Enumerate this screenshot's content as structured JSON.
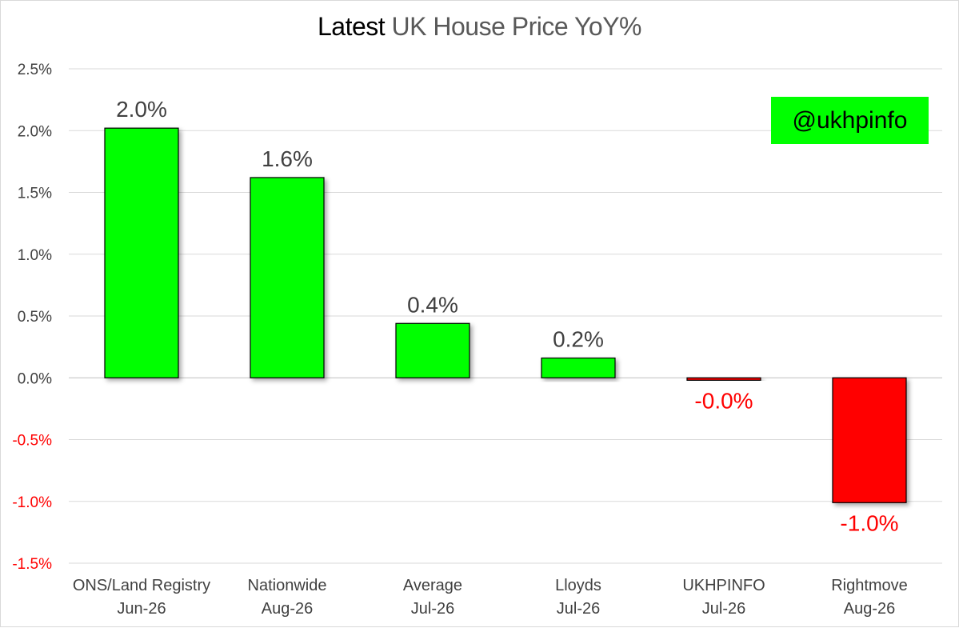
{
  "title": {
    "prefix": "Latest",
    "main": "UK House Price YoY%"
  },
  "watermark": "@ukhpinfo",
  "colors": {
    "positive": "#00ff00",
    "negative": "#ff0000",
    "label_positive": "#404040",
    "label_negative": "#ff0000",
    "gridline": "#d9d9d9"
  },
  "chart_data": {
    "type": "bar",
    "categories": [
      [
        "ONS/Land Registry",
        "Jun-26"
      ],
      [
        "Nationwide",
        "Aug-26"
      ],
      [
        "Average",
        "Jul-26"
      ],
      [
        "Lloyds",
        "Jul-26"
      ],
      [
        "UKHPINFO",
        "Jul-26"
      ],
      [
        "Rightmove",
        "Aug-26"
      ]
    ],
    "values": [
      2.02,
      1.62,
      0.44,
      0.16,
      -0.02,
      -1.01
    ],
    "data_labels": [
      "2.0%",
      "1.6%",
      "0.4%",
      "0.2%",
      "-0.0%",
      "-1.0%"
    ],
    "ylim": [
      -1.5,
      2.5
    ],
    "yticks": [
      2.5,
      2.0,
      1.5,
      1.0,
      0.5,
      0.0,
      -0.5,
      -1.0,
      -1.5
    ],
    "ytick_labels": [
      "2.5%",
      "2.0%",
      "1.5%",
      "1.0%",
      "0.5%",
      "0.0%",
      "-0.5%",
      "-1.0%",
      "-1.5%"
    ],
    "grid": true,
    "legend": "none"
  }
}
